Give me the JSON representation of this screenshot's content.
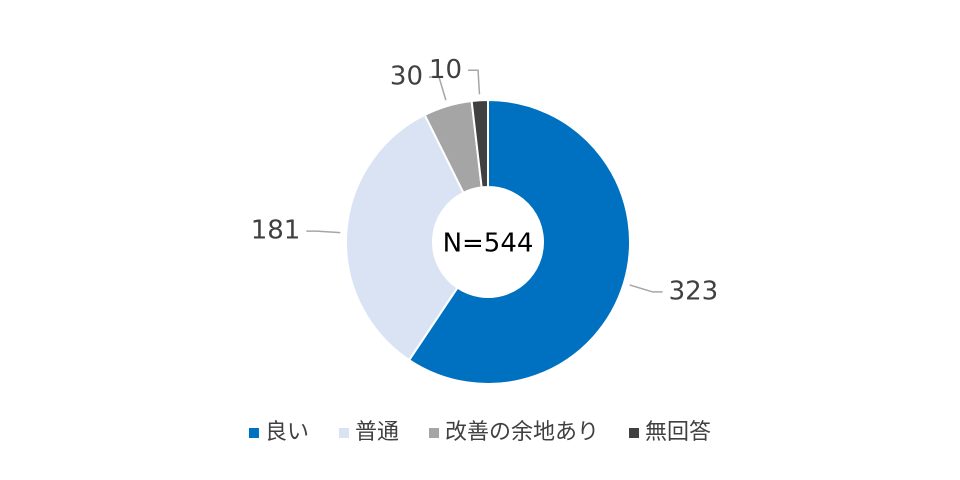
{
  "chart_data": {
    "type": "donut",
    "categories": [
      "良い",
      "普通",
      "改善の余地あり",
      "無回答"
    ],
    "values": [
      323,
      181,
      30,
      10
    ],
    "colors": [
      "#0070c0",
      "#dae3f3",
      "#a5a5a5",
      "#404040"
    ],
    "center_label": "N=544",
    "legend": "bottom"
  }
}
